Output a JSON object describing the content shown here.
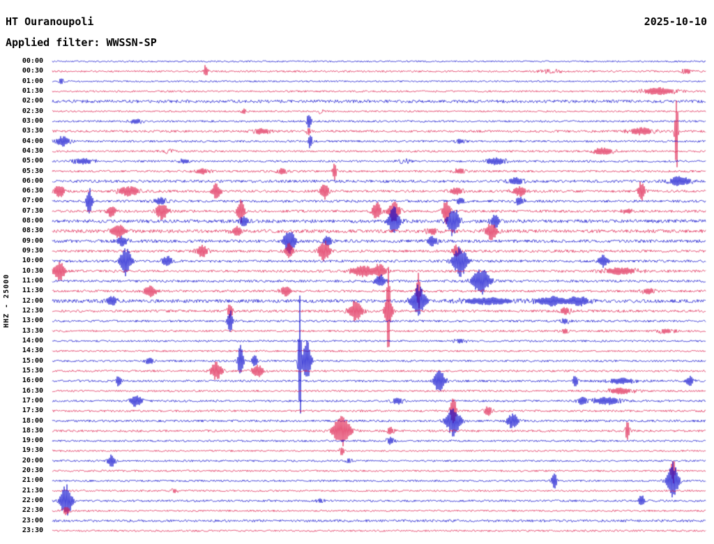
{
  "header": {
    "station": "HT Ouranoupoli",
    "date": "2025-10-10",
    "filter": "Applied filter: WWSSN-SP"
  },
  "axis": {
    "left_label": "HHZ - 25000"
  },
  "chart_data": {
    "type": "line",
    "subtype": "seismogram-helicorder",
    "title": "HT Ouranoupoli 2025-10-10",
    "station": "HT Ouranoupoli",
    "date": "2025-10-10",
    "applied_filter": "WWSSN-SP",
    "channel_scale_label": "HHZ - 25000",
    "minutes_per_row": 30,
    "colors": {
      "blue": "#0000cc",
      "red": "#dc1445"
    },
    "rows": [
      {
        "label": "00:00",
        "color": "blue",
        "noise": 1.2,
        "events": []
      },
      {
        "label": "00:30",
        "color": "red",
        "noise": 1.3,
        "events": [
          [
            295,
            3,
            10
          ],
          [
            790,
            15,
            3
          ],
          [
            985,
            8,
            4
          ]
        ]
      },
      {
        "label": "01:00",
        "color": "blue",
        "noise": 1.2,
        "events": [
          [
            88,
            3,
            6
          ]
        ]
      },
      {
        "label": "01:30",
        "color": "red",
        "noise": 1.3,
        "events": [
          [
            945,
            25,
            6
          ]
        ]
      },
      {
        "label": "02:00",
        "color": "blue",
        "noise": 2.2,
        "events": []
      },
      {
        "label": "02:30",
        "color": "red",
        "noise": 1.2,
        "events": [
          [
            350,
            4,
            4
          ],
          [
            460,
            4,
            3
          ]
        ]
      },
      {
        "label": "03:00",
        "color": "blue",
        "noise": 1.4,
        "events": [
          [
            195,
            10,
            4
          ],
          [
            443,
            3,
            14
          ]
        ]
      },
      {
        "label": "03:30",
        "color": "red",
        "noise": 1.6,
        "events": [
          [
            375,
            12,
            5
          ],
          [
            443,
            3,
            8
          ],
          [
            920,
            18,
            6
          ],
          [
            970,
            2,
            75
          ]
        ]
      },
      {
        "label": "04:00",
        "color": "blue",
        "noise": 1.5,
        "events": [
          [
            90,
            10,
            8
          ],
          [
            445,
            3,
            12
          ],
          [
            660,
            8,
            4
          ]
        ]
      },
      {
        "label": "04:30",
        "color": "red",
        "noise": 1.4,
        "events": [
          [
            865,
            15,
            6
          ],
          [
            240,
            10,
            3
          ]
        ]
      },
      {
        "label": "05:00",
        "color": "blue",
        "noise": 1.5,
        "events": [
          [
            120,
            15,
            5
          ],
          [
            265,
            8,
            4
          ],
          [
            710,
            15,
            6
          ],
          [
            580,
            8,
            3
          ]
        ]
      },
      {
        "label": "05:30",
        "color": "red",
        "noise": 1.5,
        "events": [
          [
            290,
            10,
            5
          ],
          [
            405,
            8,
            5
          ],
          [
            480,
            3,
            13
          ],
          [
            660,
            10,
            4
          ]
        ]
      },
      {
        "label": "06:00",
        "color": "blue",
        "noise": 2.0,
        "events": [
          [
            740,
            12,
            6
          ],
          [
            975,
            15,
            8
          ]
        ]
      },
      {
        "label": "06:30",
        "color": "red",
        "noise": 1.8,
        "events": [
          [
            85,
            8,
            10
          ],
          [
            185,
            15,
            8
          ],
          [
            310,
            6,
            12
          ],
          [
            465,
            6,
            14
          ],
          [
            655,
            10,
            6
          ],
          [
            745,
            10,
            8
          ],
          [
            920,
            5,
            16
          ]
        ]
      },
      {
        "label": "07:00",
        "color": "blue",
        "noise": 1.8,
        "events": [
          [
            128,
            4,
            22
          ],
          [
            230,
            8,
            6
          ],
          [
            660,
            8,
            5
          ],
          [
            745,
            6,
            8
          ]
        ]
      },
      {
        "label": "07:30",
        "color": "red",
        "noise": 1.8,
        "events": [
          [
            160,
            6,
            10
          ],
          [
            232,
            8,
            14
          ],
          [
            345,
            5,
            20
          ],
          [
            540,
            6,
            15
          ],
          [
            565,
            8,
            18
          ],
          [
            640,
            5,
            20
          ],
          [
            900,
            8,
            4
          ]
        ]
      },
      {
        "label": "08:00",
        "color": "blue",
        "noise": 2.4,
        "events": [
          [
            350,
            6,
            10
          ],
          [
            565,
            8,
            22
          ],
          [
            650,
            8,
            24
          ],
          [
            710,
            6,
            12
          ]
        ]
      },
      {
        "label": "08:30",
        "color": "red",
        "noise": 2.4,
        "events": [
          [
            170,
            10,
            12
          ],
          [
            340,
            8,
            8
          ],
          [
            620,
            8,
            6
          ],
          [
            705,
            8,
            14
          ]
        ]
      },
      {
        "label": "09:00",
        "color": "blue",
        "noise": 2.2,
        "events": [
          [
            175,
            8,
            8
          ],
          [
            415,
            8,
            20
          ],
          [
            470,
            6,
            10
          ],
          [
            620,
            8,
            8
          ]
        ]
      },
      {
        "label": "09:30",
        "color": "red",
        "noise": 1.8,
        "events": [
          [
            290,
            8,
            10
          ],
          [
            415,
            6,
            12
          ],
          [
            465,
            8,
            17
          ],
          [
            655,
            6,
            10
          ]
        ]
      },
      {
        "label": "10:00",
        "color": "blue",
        "noise": 1.8,
        "events": [
          [
            180,
            8,
            22
          ],
          [
            240,
            8,
            8
          ],
          [
            660,
            10,
            24
          ],
          [
            865,
            6,
            10
          ]
        ]
      },
      {
        "label": "10:30",
        "color": "red",
        "noise": 1.8,
        "events": [
          [
            85,
            8,
            16
          ],
          [
            520,
            15,
            10
          ],
          [
            545,
            8,
            12
          ],
          [
            890,
            25,
            6
          ]
        ]
      },
      {
        "label": "11:00",
        "color": "blue",
        "noise": 1.8,
        "events": [
          [
            545,
            8,
            10
          ],
          [
            690,
            12,
            20
          ]
        ]
      },
      {
        "label": "11:30",
        "color": "red",
        "noise": 1.7,
        "events": [
          [
            215,
            8,
            10
          ],
          [
            410,
            8,
            8
          ],
          [
            600,
            3,
            28
          ],
          [
            930,
            10,
            5
          ]
        ]
      },
      {
        "label": "12:00",
        "color": "blue",
        "noise": 2.4,
        "events": [
          [
            160,
            8,
            8
          ],
          [
            600,
            10,
            24
          ],
          [
            700,
            40,
            6
          ],
          [
            790,
            20,
            8
          ],
          [
            830,
            15,
            8
          ]
        ]
      },
      {
        "label": "12:30",
        "color": "red",
        "noise": 1.8,
        "events": [
          [
            330,
            4,
            12
          ],
          [
            510,
            10,
            16
          ],
          [
            557,
            6,
            20
          ],
          [
            557,
            2,
            50
          ],
          [
            810,
            8,
            6
          ]
        ]
      },
      {
        "label": "13:00",
        "color": "blue",
        "noise": 1.6,
        "events": [
          [
            330,
            4,
            18
          ],
          [
            810,
            6,
            5
          ]
        ]
      },
      {
        "label": "13:30",
        "color": "red",
        "noise": 1.5,
        "events": [
          [
            810,
            6,
            4
          ],
          [
            955,
            12,
            4
          ]
        ]
      },
      {
        "label": "14:00",
        "color": "blue",
        "noise": 1.4,
        "events": [
          [
            660,
            8,
            4
          ]
        ]
      },
      {
        "label": "14:30",
        "color": "red",
        "noise": 1.3,
        "events": []
      },
      {
        "label": "15:00",
        "color": "blue",
        "noise": 1.5,
        "events": [
          [
            215,
            6,
            6
          ],
          [
            345,
            4,
            24
          ],
          [
            365,
            4,
            10
          ],
          [
            430,
            2,
            115
          ],
          [
            440,
            6,
            32
          ]
        ]
      },
      {
        "label": "15:30",
        "color": "red",
        "noise": 1.5,
        "events": [
          [
            310,
            8,
            14
          ],
          [
            370,
            8,
            10
          ]
        ]
      },
      {
        "label": "16:00",
        "color": "blue",
        "noise": 1.6,
        "events": [
          [
            170,
            4,
            9
          ],
          [
            630,
            8,
            17
          ],
          [
            825,
            4,
            10
          ],
          [
            890,
            20,
            5
          ],
          [
            990,
            5,
            8
          ]
        ]
      },
      {
        "label": "16:30",
        "color": "red",
        "noise": 1.4,
        "events": [
          [
            890,
            20,
            5
          ]
        ]
      },
      {
        "label": "17:00",
        "color": "blue",
        "noise": 1.5,
        "events": [
          [
            195,
            8,
            10
          ],
          [
            570,
            8,
            6
          ],
          [
            835,
            6,
            8
          ],
          [
            870,
            20,
            6
          ]
        ]
      },
      {
        "label": "17:30",
        "color": "red",
        "noise": 1.5,
        "events": [
          [
            650,
            4,
            24
          ],
          [
            700,
            6,
            8
          ]
        ]
      },
      {
        "label": "18:00",
        "color": "blue",
        "noise": 1.6,
        "events": [
          [
            650,
            10,
            24
          ],
          [
            735,
            8,
            12
          ]
        ]
      },
      {
        "label": "18:30",
        "color": "red",
        "noise": 1.6,
        "events": [
          [
            490,
            12,
            24
          ],
          [
            560,
            6,
            6
          ],
          [
            900,
            3,
            15
          ]
        ]
      },
      {
        "label": "19:00",
        "color": "blue",
        "noise": 1.4,
        "events": [
          [
            560,
            6,
            6
          ]
        ]
      },
      {
        "label": "19:30",
        "color": "red",
        "noise": 1.3,
        "events": [
          [
            490,
            3,
            8
          ]
        ]
      },
      {
        "label": "20:00",
        "color": "blue",
        "noise": 1.4,
        "events": [
          [
            160,
            5,
            10
          ],
          [
            500,
            5,
            4
          ]
        ]
      },
      {
        "label": "20:30",
        "color": "red",
        "noise": 1.3,
        "events": [
          [
            965,
            3,
            22
          ]
        ]
      },
      {
        "label": "21:00",
        "color": "blue",
        "noise": 1.4,
        "events": [
          [
            795,
            4,
            12
          ],
          [
            965,
            8,
            28
          ]
        ]
      },
      {
        "label": "21:30",
        "color": "red",
        "noise": 1.3,
        "events": [
          [
            250,
            5,
            4
          ]
        ]
      },
      {
        "label": "22:00",
        "color": "blue",
        "noise": 1.5,
        "events": [
          [
            95,
            8,
            26
          ],
          [
            460,
            5,
            4
          ],
          [
            920,
            4,
            10
          ]
        ]
      },
      {
        "label": "22:30",
        "color": "red",
        "noise": 1.3,
        "events": [
          [
            95,
            5,
            7
          ]
        ]
      },
      {
        "label": "23:00",
        "color": "blue",
        "noise": 1.8,
        "events": []
      },
      {
        "label": "23:30",
        "color": "red",
        "noise": 1.3,
        "events": []
      }
    ]
  }
}
